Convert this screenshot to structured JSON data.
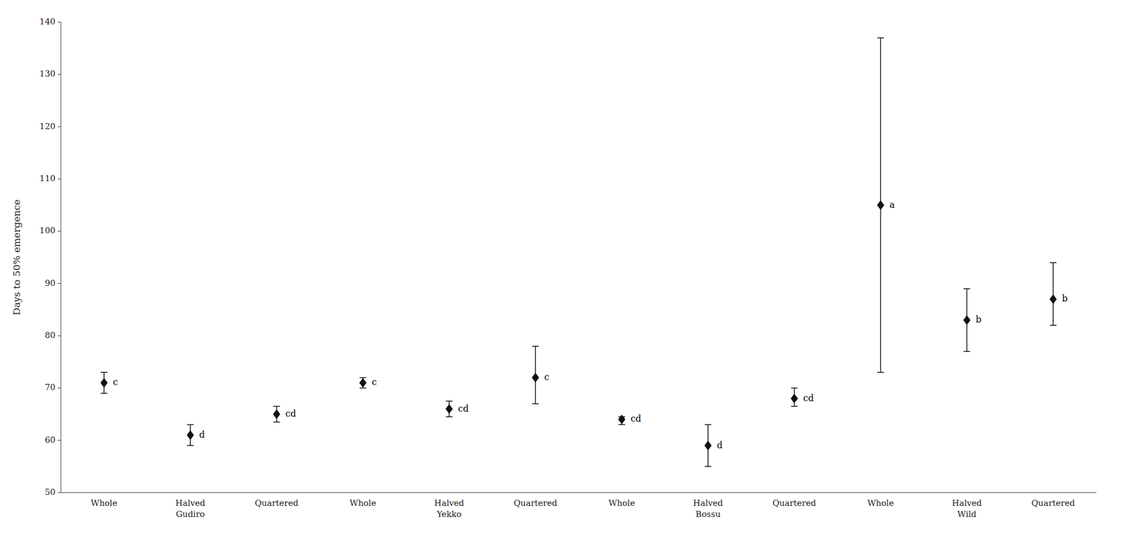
{
  "chart_data": {
    "type": "errorbar",
    "y_label": "Days to 50% emergence",
    "categories": [
      "Whole",
      "Halved\nGudiro",
      "Quartered",
      "Whole",
      "Halved\nYekko",
      "Quartered",
      "Whole",
      "Halved\nBossu",
      "Quartered",
      "Whole",
      "Halved\nWild",
      "Quartered"
    ],
    "values": [
      71,
      61,
      65,
      71,
      66,
      72,
      64,
      59,
      68,
      105,
      83,
      87
    ],
    "err_low": [
      2.0,
      2.0,
      1.5,
      1.0,
      1.5,
      5.0,
      1.0,
      4.0,
      1.5,
      32.0,
      6.0,
      5.0
    ],
    "err_high": [
      2.0,
      2.0,
      1.5,
      1.0,
      1.5,
      6.0,
      0.5,
      4.0,
      2.0,
      32.0,
      6.0,
      7.0
    ],
    "point_labels": [
      "c",
      "d",
      "cd",
      "c",
      "cd",
      "c",
      "cd",
      "d",
      "cd",
      "a",
      "b",
      "b"
    ],
    "color": "#111111",
    "marker": "diamond",
    "ylim": [
      50,
      140
    ],
    "yticks": [
      50,
      60,
      70,
      80,
      90,
      100,
      110,
      120,
      130,
      140
    ],
    "grid": false
  }
}
